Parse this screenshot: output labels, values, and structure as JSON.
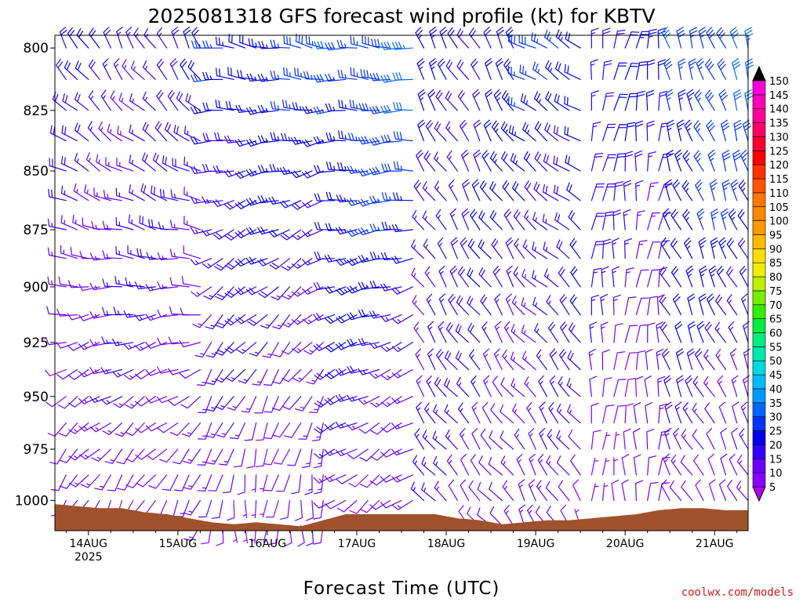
{
  "chart_data": {
    "type": "wind-barb-profile",
    "title": "2025081318 GFS forecast wind profile (kt) for KBTV",
    "xlabel": "Forecast Time (UTC)",
    "ylabel": "",
    "credit": "coolwx.com/models",
    "y_axis": {
      "unit": "hPa",
      "range": [
        1015,
        795
      ],
      "ticks": [
        800,
        825,
        850,
        875,
        900,
        925,
        950,
        975,
        1000
      ],
      "tick_labels": [
        "800",
        "825",
        "850",
        "875",
        "900",
        "925",
        "950",
        "975",
        "1000"
      ]
    },
    "x_axis": {
      "range_hours": [
        -3,
        183
      ],
      "start": "2025-08-13 18 UTC",
      "ticks": [
        {
          "hour": 6,
          "label": "14AUG",
          "sublabel": "2025"
        },
        {
          "hour": 30,
          "label": "15AUG"
        },
        {
          "hour": 54,
          "label": "16AUG"
        },
        {
          "hour": 78,
          "label": "17AUG"
        },
        {
          "hour": 102,
          "label": "18AUG"
        },
        {
          "hour": 126,
          "label": "19AUG"
        },
        {
          "hour": 150,
          "label": "20AUG"
        },
        {
          "hour": 174,
          "label": "21AUG"
        }
      ]
    },
    "pressure_levels": [
      800,
      812.5,
      825,
      837.5,
      850,
      862.5,
      875,
      887.5,
      900,
      912.5,
      925,
      937.5,
      950,
      962.5,
      975,
      987.5,
      1000,
      1012.5
    ],
    "wind_segments": [
      {
        "hours": [
          0,
          38
        ],
        "dir_low": 200,
        "dir_high": 330,
        "spd_low": 10,
        "spd_high": 18
      },
      {
        "hours": [
          38,
          72
        ],
        "dir_low": 180,
        "dir_high": 280,
        "spd_low": 8,
        "spd_high": 25
      },
      {
        "hours": [
          72,
          96
        ],
        "dir_low": 230,
        "dir_high": 275,
        "spd_low": 10,
        "spd_high": 30
      },
      {
        "hours": [
          96,
          123
        ],
        "dir_low": 320,
        "dir_high": 330,
        "spd_low": 12,
        "spd_high": 22
      },
      {
        "hours": [
          123,
          141
        ],
        "dir_low": 330,
        "dir_high": 300,
        "spd_low": 10,
        "spd_high": 25
      },
      {
        "hours": [
          141,
          162
        ],
        "dir_low": 0,
        "dir_high": 10,
        "spd_low": 8,
        "spd_high": 20
      },
      {
        "hours": [
          162,
          186
        ],
        "dir_low": 330,
        "dir_high": 340,
        "spd_low": 10,
        "spd_high": 30
      }
    ],
    "surface_pressure": {
      "hours": [
        -3,
        3,
        9,
        15,
        21,
        27,
        33,
        39,
        45,
        51,
        57,
        63,
        69,
        75,
        81,
        87,
        93,
        99,
        105,
        111,
        117,
        123,
        129,
        135,
        141,
        147,
        153,
        159,
        165,
        171,
        177,
        183
      ],
      "values": [
        1002,
        1003,
        1004,
        1004,
        1006,
        1007,
        1009,
        1011,
        1012,
        1011,
        1012,
        1013,
        1010,
        1007,
        1007,
        1007,
        1007,
        1007,
        1009,
        1010,
        1012,
        1011,
        1010,
        1010,
        1009,
        1008,
        1007,
        1005,
        1004,
        1004,
        1005,
        1005
      ]
    },
    "colorbar": {
      "unit": "kt",
      "levels": [
        5,
        10,
        15,
        20,
        25,
        30,
        35,
        40,
        45,
        50,
        55,
        60,
        65,
        70,
        75,
        80,
        85,
        90,
        95,
        100,
        105,
        110,
        115,
        120,
        125,
        130,
        135,
        140,
        145,
        150
      ],
      "colors": [
        "#8800ff",
        "#6a00ff",
        "#3300ff",
        "#0000ee",
        "#0033ff",
        "#0066ff",
        "#0099ff",
        "#00bbff",
        "#00d9e0",
        "#00e8b0",
        "#00ee80",
        "#00ee40",
        "#33ee00",
        "#77ee00",
        "#bbee00",
        "#eeee00",
        "#ffdd00",
        "#ffbb00",
        "#ff9900",
        "#ff8800",
        "#ff7700",
        "#ff5500",
        "#ff3300",
        "#ff0000",
        "#ff0033",
        "#ff0066",
        "#ff0099",
        "#ff00bb",
        "#ff00dd",
        "#ff00ff"
      ]
    },
    "terrain_color": "#a0522d"
  }
}
